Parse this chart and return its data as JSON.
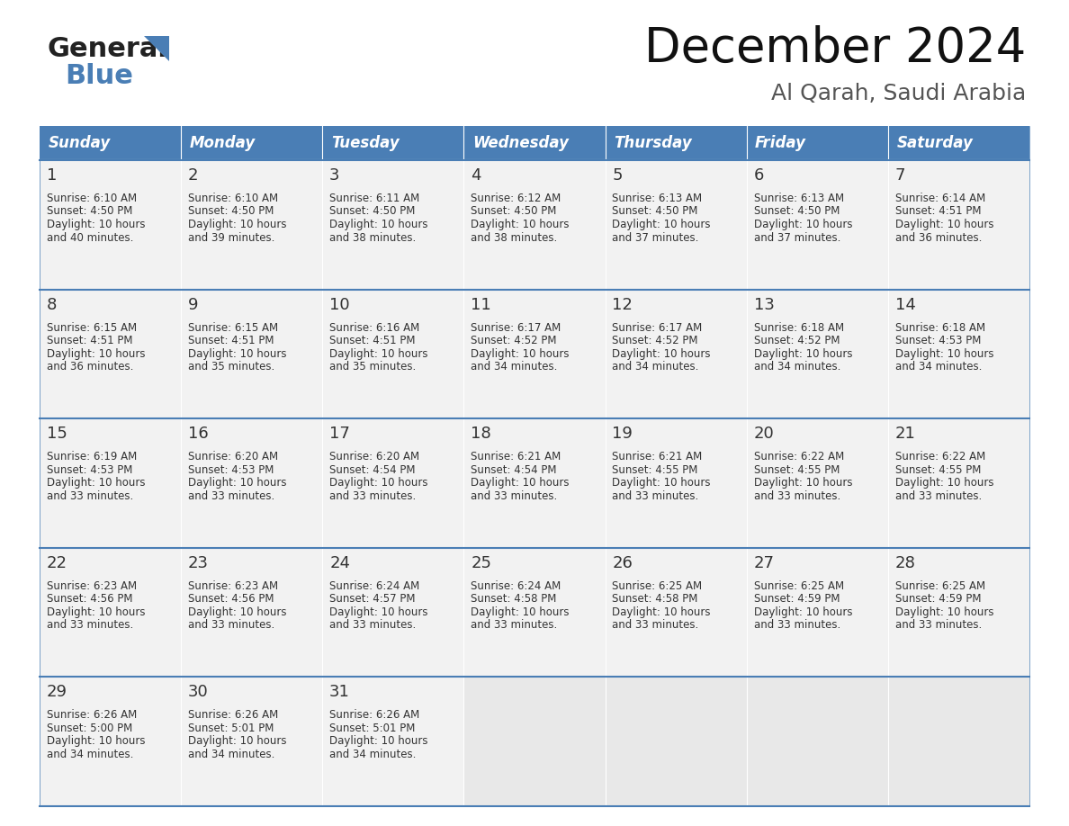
{
  "title": "December 2024",
  "subtitle": "Al Qarah, Saudi Arabia",
  "header_color": "#4a7eb5",
  "header_text_color": "#ffffff",
  "day_names": [
    "Sunday",
    "Monday",
    "Tuesday",
    "Wednesday",
    "Thursday",
    "Friday",
    "Saturday"
  ],
  "weeks": [
    [
      {
        "day": "1",
        "sunrise": "6:10 AM",
        "sunset": "4:50 PM",
        "daylight": "10 hours and 40 minutes."
      },
      {
        "day": "2",
        "sunrise": "6:10 AM",
        "sunset": "4:50 PM",
        "daylight": "10 hours and 39 minutes."
      },
      {
        "day": "3",
        "sunrise": "6:11 AM",
        "sunset": "4:50 PM",
        "daylight": "10 hours and 38 minutes."
      },
      {
        "day": "4",
        "sunrise": "6:12 AM",
        "sunset": "4:50 PM",
        "daylight": "10 hours and 38 minutes."
      },
      {
        "day": "5",
        "sunrise": "6:13 AM",
        "sunset": "4:50 PM",
        "daylight": "10 hours and 37 minutes."
      },
      {
        "day": "6",
        "sunrise": "6:13 AM",
        "sunset": "4:50 PM",
        "daylight": "10 hours and 37 minutes."
      },
      {
        "day": "7",
        "sunrise": "6:14 AM",
        "sunset": "4:51 PM",
        "daylight": "10 hours and 36 minutes."
      }
    ],
    [
      {
        "day": "8",
        "sunrise": "6:15 AM",
        "sunset": "4:51 PM",
        "daylight": "10 hours and 36 minutes."
      },
      {
        "day": "9",
        "sunrise": "6:15 AM",
        "sunset": "4:51 PM",
        "daylight": "10 hours and 35 minutes."
      },
      {
        "day": "10",
        "sunrise": "6:16 AM",
        "sunset": "4:51 PM",
        "daylight": "10 hours and 35 minutes."
      },
      {
        "day": "11",
        "sunrise": "6:17 AM",
        "sunset": "4:52 PM",
        "daylight": "10 hours and 34 minutes."
      },
      {
        "day": "12",
        "sunrise": "6:17 AM",
        "sunset": "4:52 PM",
        "daylight": "10 hours and 34 minutes."
      },
      {
        "day": "13",
        "sunrise": "6:18 AM",
        "sunset": "4:52 PM",
        "daylight": "10 hours and 34 minutes."
      },
      {
        "day": "14",
        "sunrise": "6:18 AM",
        "sunset": "4:53 PM",
        "daylight": "10 hours and 34 minutes."
      }
    ],
    [
      {
        "day": "15",
        "sunrise": "6:19 AM",
        "sunset": "4:53 PM",
        "daylight": "10 hours and 33 minutes."
      },
      {
        "day": "16",
        "sunrise": "6:20 AM",
        "sunset": "4:53 PM",
        "daylight": "10 hours and 33 minutes."
      },
      {
        "day": "17",
        "sunrise": "6:20 AM",
        "sunset": "4:54 PM",
        "daylight": "10 hours and 33 minutes."
      },
      {
        "day": "18",
        "sunrise": "6:21 AM",
        "sunset": "4:54 PM",
        "daylight": "10 hours and 33 minutes."
      },
      {
        "day": "19",
        "sunrise": "6:21 AM",
        "sunset": "4:55 PM",
        "daylight": "10 hours and 33 minutes."
      },
      {
        "day": "20",
        "sunrise": "6:22 AM",
        "sunset": "4:55 PM",
        "daylight": "10 hours and 33 minutes."
      },
      {
        "day": "21",
        "sunrise": "6:22 AM",
        "sunset": "4:55 PM",
        "daylight": "10 hours and 33 minutes."
      }
    ],
    [
      {
        "day": "22",
        "sunrise": "6:23 AM",
        "sunset": "4:56 PM",
        "daylight": "10 hours and 33 minutes."
      },
      {
        "day": "23",
        "sunrise": "6:23 AM",
        "sunset": "4:56 PM",
        "daylight": "10 hours and 33 minutes."
      },
      {
        "day": "24",
        "sunrise": "6:24 AM",
        "sunset": "4:57 PM",
        "daylight": "10 hours and 33 minutes."
      },
      {
        "day": "25",
        "sunrise": "6:24 AM",
        "sunset": "4:58 PM",
        "daylight": "10 hours and 33 minutes."
      },
      {
        "day": "26",
        "sunrise": "6:25 AM",
        "sunset": "4:58 PM",
        "daylight": "10 hours and 33 minutes."
      },
      {
        "day": "27",
        "sunrise": "6:25 AM",
        "sunset": "4:59 PM",
        "daylight": "10 hours and 33 minutes."
      },
      {
        "day": "28",
        "sunrise": "6:25 AM",
        "sunset": "4:59 PM",
        "daylight": "10 hours and 33 minutes."
      }
    ],
    [
      {
        "day": "29",
        "sunrise": "6:26 AM",
        "sunset": "5:00 PM",
        "daylight": "10 hours and 34 minutes."
      },
      {
        "day": "30",
        "sunrise": "6:26 AM",
        "sunset": "5:01 PM",
        "daylight": "10 hours and 34 minutes."
      },
      {
        "day": "31",
        "sunrise": "6:26 AM",
        "sunset": "5:01 PM",
        "daylight": "10 hours and 34 minutes."
      },
      null,
      null,
      null,
      null
    ]
  ],
  "logo_general_color": "#222222",
  "logo_blue_color": "#4a7eb5",
  "cell_bg_color": "#f2f2f2",
  "empty_cell_bg_color": "#e8e8e8",
  "cell_border_color": "#4a7eb5",
  "text_color": "#333333",
  "title_color": "#111111",
  "subtitle_color": "#555555",
  "title_fontsize": 38,
  "subtitle_fontsize": 18,
  "day_num_fontsize": 13,
  "cell_text_fontsize": 8.5,
  "header_fontsize": 12
}
